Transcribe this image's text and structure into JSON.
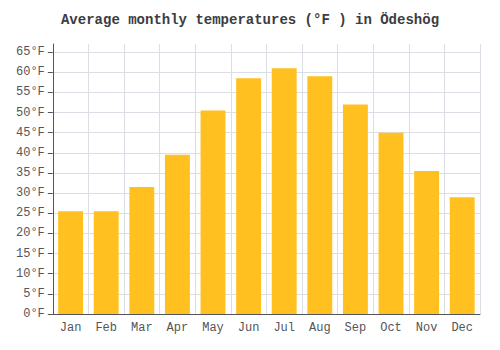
{
  "chart_data": {
    "type": "bar",
    "title": "Average monthly temperatures (°F ) in Ödeshög",
    "categories": [
      "Jan",
      "Feb",
      "Mar",
      "Apr",
      "May",
      "Jun",
      "Jul",
      "Aug",
      "Sep",
      "Oct",
      "Nov",
      "Dec"
    ],
    "values": [
      25.5,
      25.5,
      31.5,
      39.5,
      50.5,
      58.5,
      61.0,
      59.0,
      52.0,
      45.0,
      35.5,
      29.0
    ],
    "color": "#FFC020",
    "ylim": [
      0,
      67
    ],
    "yticks": [
      {
        "value": 0,
        "label": "0°F"
      },
      {
        "value": 5,
        "label": "5°F"
      },
      {
        "value": 10,
        "label": "10°F"
      },
      {
        "value": 15,
        "label": "15°F"
      },
      {
        "value": 20,
        "label": "20°F"
      },
      {
        "value": 25,
        "label": "25°F"
      },
      {
        "value": 30,
        "label": "30°F"
      },
      {
        "value": 35,
        "label": "35°F"
      },
      {
        "value": 40,
        "label": "40°F"
      },
      {
        "value": 45,
        "label": "45°F"
      },
      {
        "value": 50,
        "label": "50°F"
      },
      {
        "value": 55,
        "label": "55°F"
      },
      {
        "value": 60,
        "label": "60°F"
      },
      {
        "value": 65,
        "label": "65°F"
      }
    ],
    "grid": true
  }
}
